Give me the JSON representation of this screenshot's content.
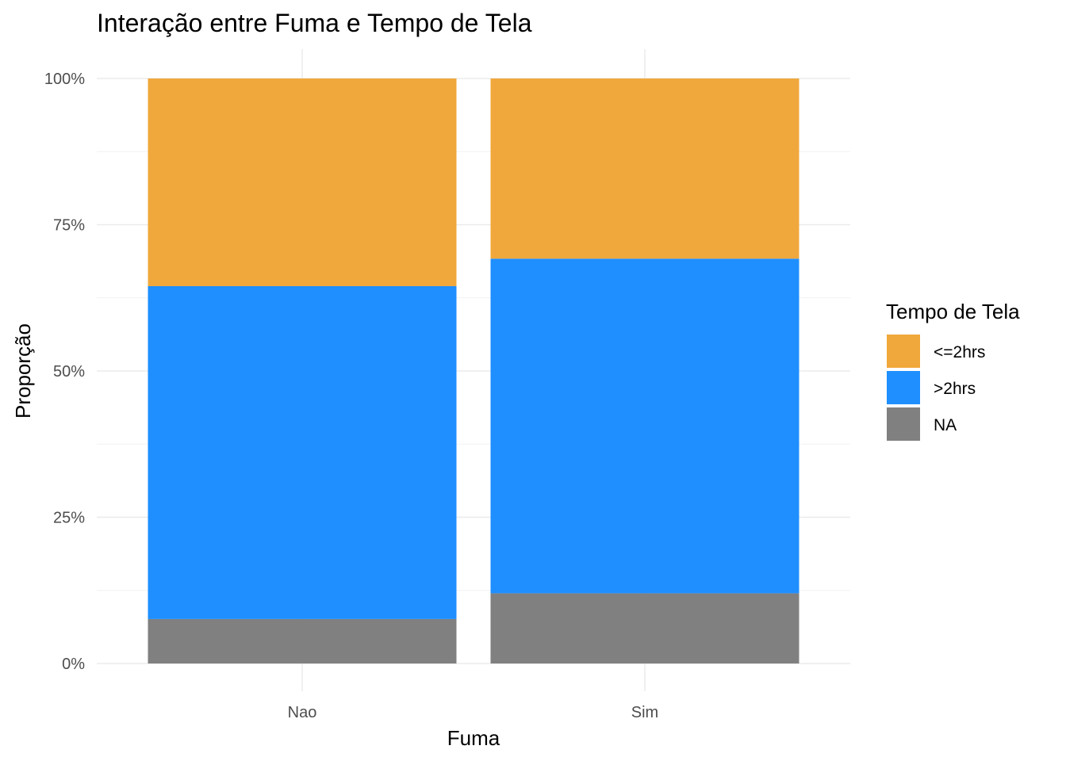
{
  "chart_data": {
    "type": "bar",
    "stacked": true,
    "normalized": true,
    "title": "Interação entre Fuma e Tempo de Tela",
    "xlabel": "Fuma",
    "ylabel": "Proporção",
    "categories": [
      "Nao",
      "Sim"
    ],
    "y_ticks": [
      "0%",
      "25%",
      "50%",
      "75%",
      "100%"
    ],
    "ylim": [
      0,
      1
    ],
    "grid": true,
    "legend": {
      "title": "Tempo de Tela",
      "position": "right",
      "stack_order_top_to_bottom": [
        "<=2hrs",
        ">2hrs",
        "NA"
      ]
    },
    "series": [
      {
        "name": "<=2hrs",
        "color": "#F0A83C",
        "values": [
          0.355,
          0.308
        ]
      },
      {
        "name": ">2hrs",
        "color": "#1F8FFF",
        "values": [
          0.569,
          0.572
        ]
      },
      {
        "name": "NA",
        "color": "#808080",
        "values": [
          0.076,
          0.12
        ]
      }
    ]
  }
}
